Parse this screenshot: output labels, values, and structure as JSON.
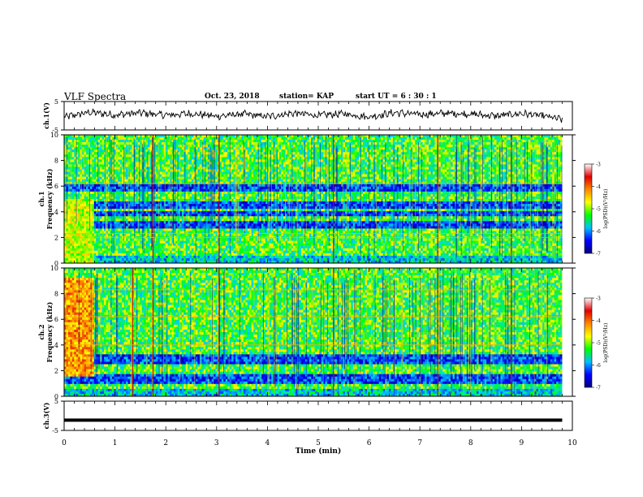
{
  "header": {
    "title": "VLF Spectra",
    "date": "Oct. 23, 2018",
    "station": "station= KAP",
    "start": "start UT =  6 : 30 : 1"
  },
  "colorbar": {
    "label": "log(PSD)(V²/Hz)",
    "ticks": [
      "-3",
      "-4",
      "-5",
      "-6",
      "-7"
    ],
    "colors": [
      "#ffffff",
      "#e00000",
      "#ff8800",
      "#ffff00",
      "#00ff00",
      "#00c0ff",
      "#0000ff",
      "#000080"
    ]
  },
  "chart_data": [
    {
      "type": "line",
      "ylabel": "ch.1(V)",
      "ylim": [
        -5,
        5
      ],
      "yticks": [
        "5",
        "-5"
      ],
      "x_range_min": [
        0,
        9.8
      ],
      "description_note": "",
      "samples_min": [
        0,
        0.5,
        1,
        1.5,
        2,
        2.5,
        3,
        3.5,
        4,
        4.5,
        5,
        5.5,
        6,
        6.5,
        7,
        7.5,
        8,
        8.5,
        9,
        9.5,
        9.8
      ],
      "values": [
        -0.5,
        1.2,
        0.3,
        1.0,
        0.2,
        0.8,
        -0.2,
        0.6,
        -0.3,
        0.9,
        0.1,
        0.7,
        -0.4,
        1.1,
        0.4,
        0.9,
        0.6,
        -0.1,
        0.8,
        -0.3,
        -1.4
      ]
    },
    {
      "type": "heatmap",
      "ylabel": "ch.1\nFrequency (kHz)",
      "ylim": [
        0,
        10
      ],
      "yticks": [
        "0",
        "2",
        "4",
        "6",
        "8",
        "10"
      ],
      "xlim": [
        0,
        10
      ],
      "clim": [
        -7,
        -3
      ],
      "bands_khz": [
        [
          2.7,
          3.3
        ],
        [
          3.7,
          4.0
        ],
        [
          4.2,
          4.8
        ],
        [
          5.5,
          6.1
        ]
      ],
      "bright_lines_khz": [
        2.0,
        2.3,
        6.2
      ],
      "strong_spikes_min": [
        1.75,
        3.05,
        5.3,
        7.35,
        8.8
      ]
    },
    {
      "type": "heatmap",
      "ylabel": "ch.2\nFrequency (kHz)",
      "ylim": [
        0,
        10
      ],
      "yticks": [
        "0",
        "2",
        "4",
        "6",
        "8",
        "10"
      ],
      "xlim": [
        0,
        10
      ],
      "clim": [
        -7,
        -3
      ],
      "bands_khz": [
        [
          1.0,
          1.8
        ],
        [
          2.5,
          3.2
        ]
      ],
      "bright_lines_khz": [
        4.0,
        6.2,
        8.3
      ],
      "strong_spikes_min": [
        1.35,
        1.75,
        3.05,
        5.3,
        7.35,
        8.8
      ]
    },
    {
      "type": "line",
      "ylabel": "ch.3(V)",
      "ylim": [
        -5,
        5
      ],
      "yticks": [
        "5",
        "-5"
      ],
      "x_range_min": [
        0,
        9.8
      ],
      "value": -1.5
    }
  ],
  "xaxis": {
    "label": "Time (min)",
    "ticks": [
      "0",
      "1",
      "2",
      "3",
      "4",
      "5",
      "6",
      "7",
      "8",
      "9",
      "10"
    ]
  }
}
